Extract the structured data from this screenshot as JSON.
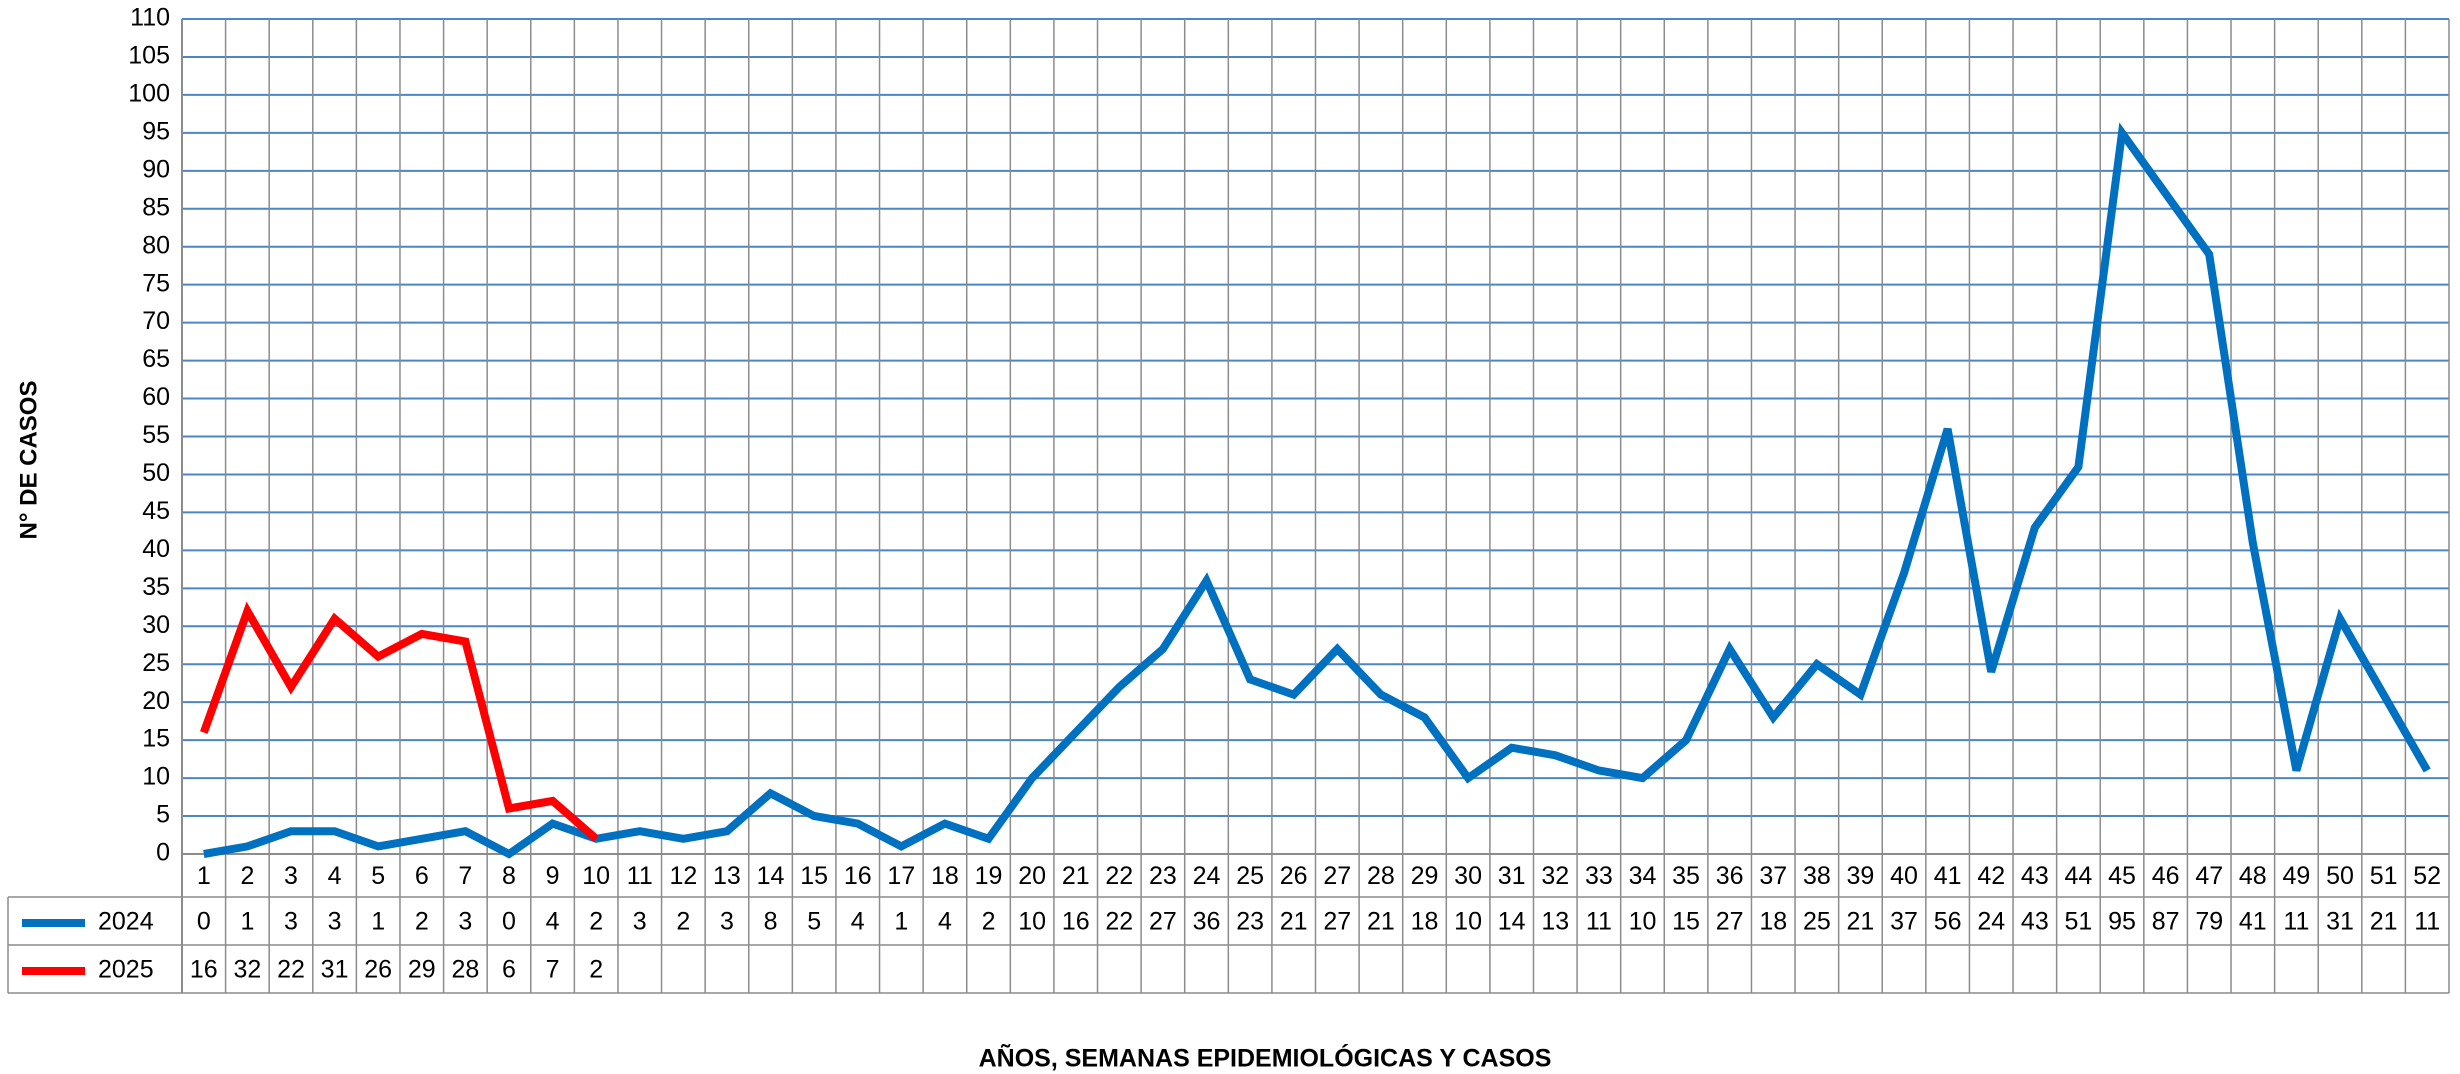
{
  "chart_data": {
    "type": "line",
    "y_label": "N° DE CASOS",
    "x_label": "AÑOS, SEMANAS EPIDEMIOLÓGICAS  Y CASOS",
    "categories": [
      1,
      2,
      3,
      4,
      5,
      6,
      7,
      8,
      9,
      10,
      11,
      12,
      13,
      14,
      15,
      16,
      17,
      18,
      19,
      20,
      21,
      22,
      23,
      24,
      25,
      26,
      27,
      28,
      29,
      30,
      31,
      32,
      33,
      34,
      35,
      36,
      37,
      38,
      39,
      40,
      41,
      42,
      43,
      44,
      45,
      46,
      47,
      48,
      49,
      50,
      51,
      52
    ],
    "series": [
      {
        "name": "2024",
        "color": "#0070c0",
        "values": [
          0,
          1,
          3,
          3,
          1,
          2,
          3,
          0,
          4,
          2,
          3,
          2,
          3,
          8,
          5,
          4,
          1,
          4,
          2,
          10,
          16,
          22,
          27,
          36,
          23,
          21,
          27,
          21,
          18,
          10,
          14,
          13,
          11,
          10,
          15,
          27,
          18,
          25,
          21,
          37,
          56,
          24,
          43,
          51,
          95,
          87,
          79,
          41,
          11,
          31,
          21,
          11
        ]
      },
      {
        "name": "2025",
        "color": "#ff0000",
        "values": [
          16,
          32,
          22,
          31,
          26,
          29,
          28,
          6,
          7,
          2,
          null,
          null,
          null,
          null,
          null,
          null,
          null,
          null,
          null,
          null,
          null,
          null,
          null,
          null,
          null,
          null,
          null,
          null,
          null,
          null,
          null,
          null,
          null,
          null,
          null,
          null,
          null,
          null,
          null,
          null,
          null,
          null,
          null,
          null,
          null,
          null,
          null,
          null,
          null,
          null,
          null,
          null
        ]
      }
    ],
    "ylim": [
      0,
      110
    ],
    "yticks": [
      0,
      5,
      10,
      15,
      20,
      25,
      30,
      35,
      40,
      45,
      50,
      55,
      60,
      65,
      70,
      75,
      80,
      85,
      90,
      95,
      100,
      105,
      110
    ],
    "grid": true,
    "data_table": true
  }
}
